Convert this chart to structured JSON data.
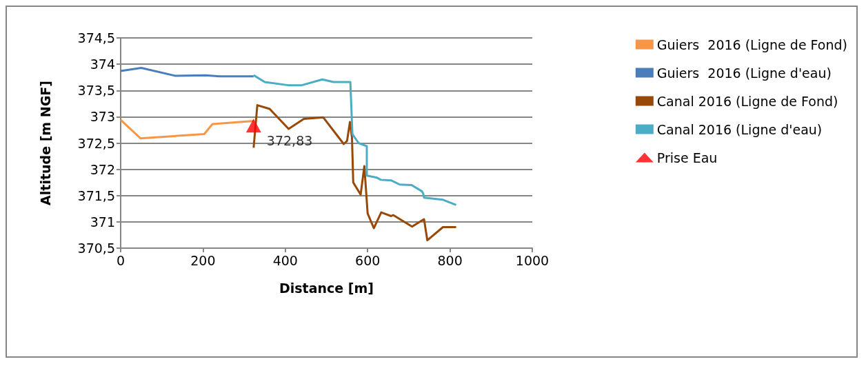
{
  "chart_data": {
    "type": "line",
    "xlabel": "Distance [m]",
    "ylabel": "Altitude [m NGF]",
    "xlim": [
      0,
      1000
    ],
    "xticks": [
      0,
      200,
      400,
      600,
      800,
      1000
    ],
    "ylim": [
      370.5,
      374.5
    ],
    "yticks": [
      {
        "value": 370.5,
        "label": "370,5"
      },
      371,
      {
        "value": 371.5,
        "label": "371,5"
      },
      372,
      {
        "value": 372.5,
        "label": "372,5"
      },
      373,
      {
        "value": 373.5,
        "label": "373,5"
      },
      374,
      {
        "value": 374.5,
        "label": "374,5"
      }
    ],
    "grid": "y",
    "legend": "right",
    "marker": "none",
    "line_style": "solid",
    "series": [
      {
        "name": "Guiers  2016 (Ligne de Fond)",
        "color": "#f79646",
        "x": [
          0,
          48,
          203,
          223,
          323
        ],
        "values": [
          372.94,
          372.59,
          372.67,
          372.86,
          372.92
        ]
      },
      {
        "name": "Guiers  2016 (Ligne d'eau)",
        "color": "#4a7ebb",
        "x": [
          0,
          50,
          132,
          206,
          240,
          323
        ],
        "values": [
          373.87,
          373.93,
          373.78,
          373.79,
          373.77,
          373.77
        ]
      },
      {
        "name": "Canal 2016 (Ligne de Fond)",
        "color": "#984807",
        "x": [
          323,
          332,
          362,
          408,
          445,
          492,
          542,
          550,
          557,
          562,
          565,
          583,
          592,
          600,
          615,
          633,
          657,
          662,
          708,
          737,
          745,
          783,
          815
        ],
        "values": [
          372.41,
          373.22,
          373.15,
          372.77,
          372.96,
          372.99,
          372.48,
          372.54,
          372.9,
          372.6,
          371.75,
          371.52,
          372.06,
          371.16,
          370.88,
          371.18,
          371.11,
          371.13,
          370.91,
          371.05,
          370.65,
          370.9,
          370.9
        ]
      },
      {
        "name": "Canal 2016 (Ligne d'eau)",
        "color": "#4bacc6",
        "x": [
          323,
          350,
          407,
          440,
          490,
          517,
          558,
          563,
          578,
          598,
          598,
          623,
          632,
          657,
          678,
          707,
          732,
          735,
          737,
          783,
          815
        ],
        "values": [
          373.79,
          373.66,
          373.6,
          373.6,
          373.71,
          373.66,
          373.66,
          372.67,
          372.5,
          372.44,
          371.88,
          371.84,
          371.8,
          371.79,
          371.71,
          371.7,
          371.58,
          371.54,
          371.46,
          371.42,
          371.32
        ]
      },
      {
        "name": "Prise Eau",
        "type": "scatter",
        "marker": "triangle",
        "color": "#ff0000",
        "x": [
          323
        ],
        "values": [
          372.83
        ],
        "value_labels": [
          "372,83"
        ]
      }
    ]
  }
}
